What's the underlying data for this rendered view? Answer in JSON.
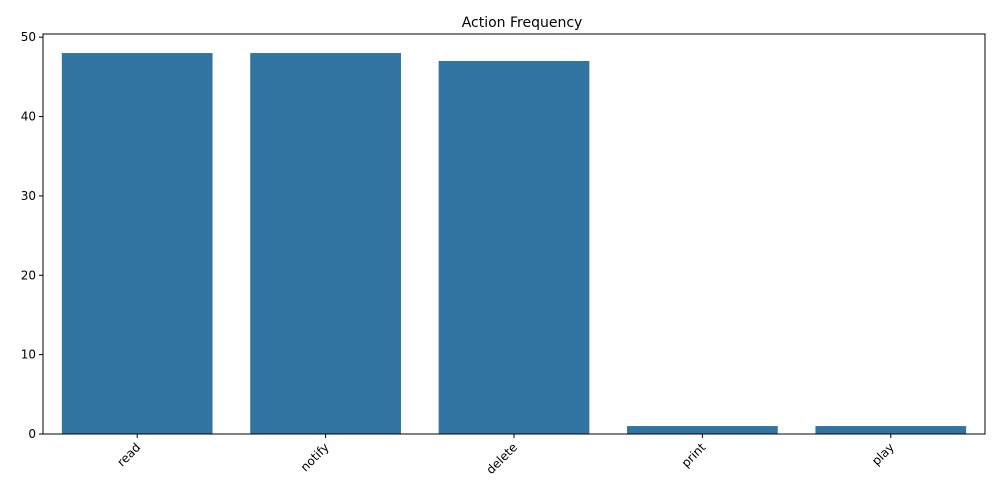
{
  "chart_data": {
    "type": "bar",
    "title": "Action Frequency",
    "xlabel": "",
    "ylabel": "",
    "categories": [
      "read",
      "notify",
      "delete",
      "print",
      "play"
    ],
    "values": [
      48,
      48,
      47,
      1,
      1
    ],
    "ylim": [
      0,
      50.4
    ],
    "yticks": [
      0,
      10,
      20,
      30,
      40,
      50
    ],
    "grid": false,
    "bar_color": "#3274a1",
    "xtick_rotation": 45
  }
}
